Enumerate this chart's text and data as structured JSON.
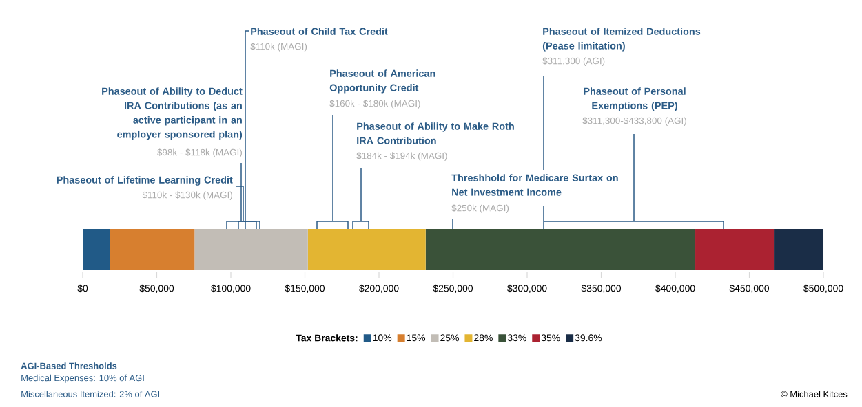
{
  "chart_data": {
    "type": "bar",
    "orientation": "horizontal",
    "stacked": true,
    "categories": [
      null
    ],
    "series": [
      {
        "name": "10%",
        "color": "#215a87",
        "values": [
          18500
        ]
      },
      {
        "name": "15%",
        "color": "#d77f2f",
        "values": [
          57000
        ]
      },
      {
        "name": "25%",
        "color": "#c2bdb6",
        "values": [
          76500
        ]
      },
      {
        "name": "28%",
        "color": "#e3b532",
        "values": [
          79500
        ]
      },
      {
        "name": "33%",
        "color": "#3a5239",
        "values": [
          182000
        ]
      },
      {
        "name": "35%",
        "color": "#ab2231",
        "values": [
          53500
        ]
      },
      {
        "name": "39.6%",
        "color": "#1a2d47",
        "values": [
          33000
        ]
      }
    ],
    "xlim": [
      0,
      500000
    ],
    "xticks": [
      {
        "value": 0,
        "label": "$0"
      },
      {
        "value": 50000,
        "label": "$50,000"
      },
      {
        "value": 100000,
        "label": "$100,000"
      },
      {
        "value": 150000,
        "label": "$150,000"
      },
      {
        "value": 200000,
        "label": "$200,000"
      },
      {
        "value": 250000,
        "label": "$250,000"
      },
      {
        "value": 300000,
        "label": "$300,000"
      },
      {
        "value": 350000,
        "label": "$350,000"
      },
      {
        "value": 400000,
        "label": "$400,000"
      },
      {
        "value": 450000,
        "label": "$450,000"
      },
      {
        "value": 500000,
        "label": "$500,000"
      }
    ],
    "legend": "bottom",
    "legend_title": "Tax Brackets:",
    "annotations": [
      "Phaseout of Child Tax Credit",
      "$110k (MAGI)",
      "Phaseout of Ability to Deduct IRA Contributions (as an active participant in an employer sponsored plan)",
      "$98k - $118k (MAGI)",
      "Phaseout of Lifetime Learning Credit",
      "$110k - $130k (MAGI)",
      "Phaseout of American Opportunity Credit",
      "$160k - $180k (MAGI)",
      "Phaseout of Ability to Make Roth IRA Contribution",
      "$184k - $194k (MAGI)",
      "Threshhold for Medicare Surtax on Net Investment Income",
      "$250k (MAGI)",
      "Phaseout of Itemized Deductions (Pease limitation)",
      "$311,300 (AGI)",
      "Phaseout of Personal Exemptions (PEP)",
      "$311,300-$433,800 (AGI)",
      "AGI-Based Thresholds",
      "Medical Expenses: 10% of AGI",
      "Miscellaneous Itemized: 2% of AGI",
      "© Michael Kitces"
    ]
  }
}
